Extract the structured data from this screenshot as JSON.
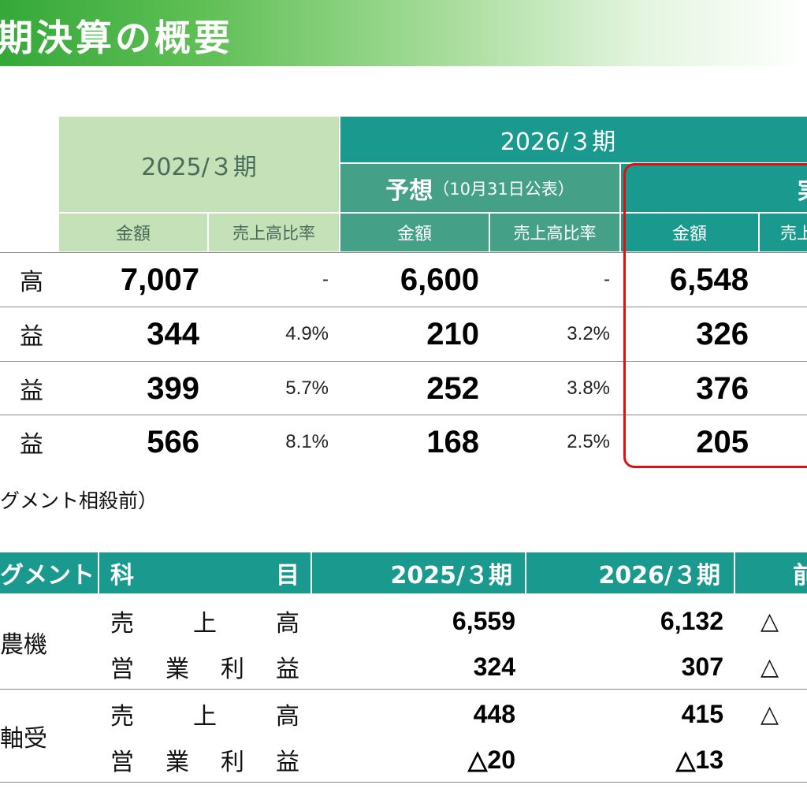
{
  "banner": {
    "title": "期決算の概要"
  },
  "table1": {
    "col_2025": "2025/３期",
    "col_2026": "2026/３期",
    "forecast": "予想",
    "forecast_note": "（10月31日公表）",
    "result_partial": "実",
    "amount": "金額",
    "ratio": "売上高比率",
    "ratio_partial": "売上",
    "rows": [
      {
        "label": "高",
        "v2025": "7,007",
        "r2025": "-",
        "vf": "6,600",
        "rf": "-",
        "va": "6,548"
      },
      {
        "label": "益",
        "v2025": "344",
        "r2025": "4.9%",
        "vf": "210",
        "rf": "3.2%",
        "va": "326"
      },
      {
        "label": "益",
        "v2025": "399",
        "r2025": "5.7%",
        "vf": "252",
        "rf": "3.8%",
        "va": "376"
      },
      {
        "label": "益",
        "v2025": "566",
        "r2025": "8.1%",
        "vf": "168",
        "rf": "2.5%",
        "va": "205"
      }
    ]
  },
  "segment_note": "グメント相殺前）",
  "table2": {
    "h_segment": "グメント",
    "h_item_a": "科",
    "h_item_b": "目",
    "h_2025": "2025/３期",
    "h_2026": "2026/３期",
    "h_prev": "前",
    "groups": [
      {
        "name": "農機",
        "rows": [
          {
            "item": [
              "売",
              "上",
              "高"
            ],
            "v2025": "6,559",
            "v2026": "6,132",
            "delta": "△"
          },
          {
            "item": [
              "営",
              "業",
              "利",
              "益"
            ],
            "v2025": "324",
            "v2026": "307",
            "delta": "△"
          }
        ]
      },
      {
        "name": "軸受",
        "rows": [
          {
            "item": [
              "売",
              "上",
              "高"
            ],
            "v2025": "448",
            "v2026": "415",
            "delta": "△"
          },
          {
            "item": [
              "営",
              "業",
              "利",
              "益"
            ],
            "v2025": "△20",
            "v2026": "△13",
            "delta": ""
          }
        ]
      }
    ]
  },
  "colors": {
    "teal": "#1a9a8e",
    "light_green": "#c4e1b8",
    "mid_green": "#45a088",
    "highlight_red": "#e01010"
  }
}
